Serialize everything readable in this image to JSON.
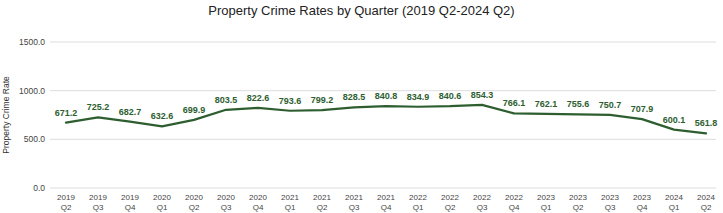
{
  "chart_data": {
    "type": "line",
    "title": "Property Crime Rates by Quarter (2019 Q2-2024 Q2)",
    "y_label": "Property Crime Rate",
    "categories": [
      "2019 Q2",
      "2019 Q3",
      "2019 Q4",
      "2020 Q1",
      "2020 Q2",
      "2020 Q3",
      "2020 Q4",
      "2021 Q1",
      "2021 Q2",
      "2021 Q3",
      "2021 Q4",
      "2022 Q1",
      "2022 Q2",
      "2022 Q3",
      "2022 Q4",
      "2023 Q1",
      "2023 Q2",
      "2023 Q3",
      "2023 Q4",
      "2024 Q1",
      "2024 Q2"
    ],
    "values": [
      671.2,
      725.2,
      682.7,
      632.6,
      699.9,
      803.5,
      822.6,
      793.6,
      799.2,
      828.5,
      840.8,
      834.9,
      840.6,
      854.3,
      766.1,
      762.1,
      755.6,
      750.7,
      707.9,
      600.1,
      561.8
    ],
    "color": "#2e5e30",
    "ylim": [
      0,
      1500
    ],
    "yticks": [
      {
        "value": 0,
        "label": "0.0"
      },
      {
        "value": 500,
        "label": "500.0"
      },
      {
        "value": 1000,
        "label": "1000.0"
      },
      {
        "value": 1500,
        "label": "1500.0"
      }
    ],
    "grid": true,
    "data_labels": true
  }
}
